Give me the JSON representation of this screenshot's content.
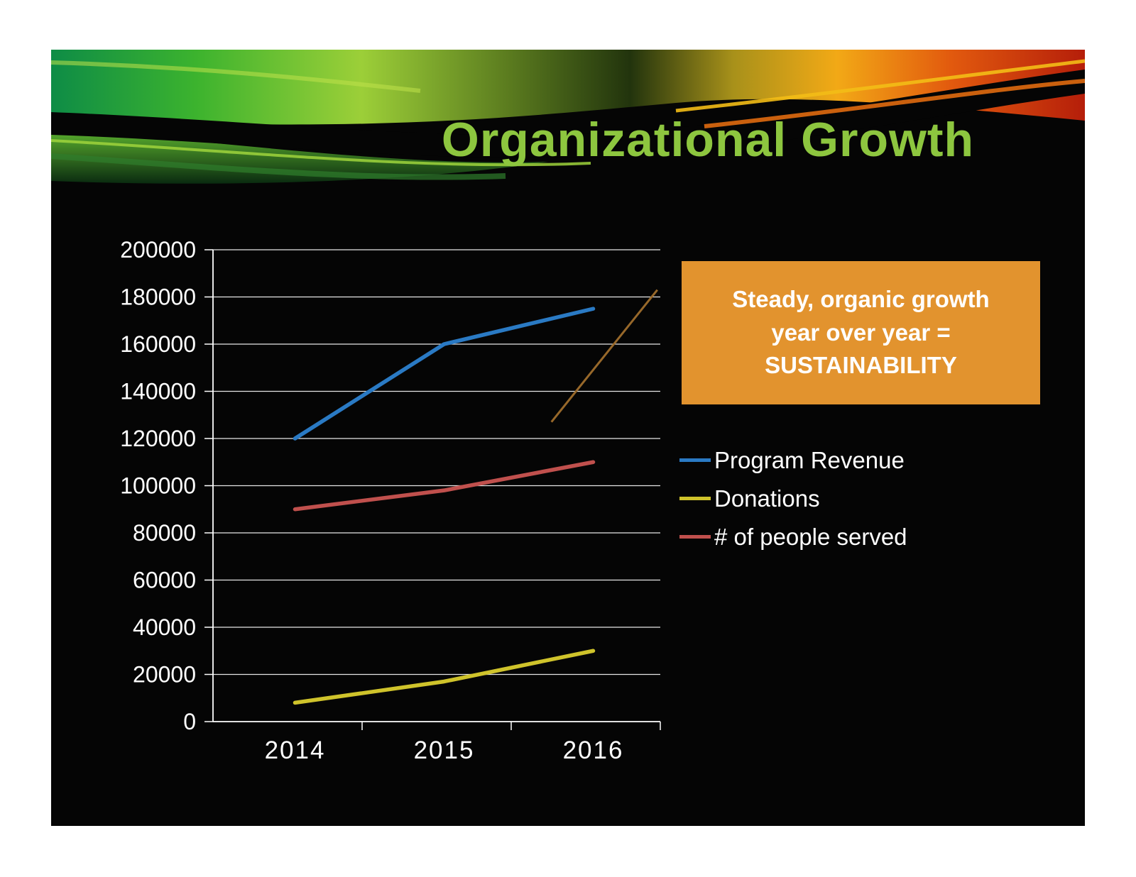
{
  "slide": {
    "title": "Organizational Growth",
    "title_color": "#8dc63f",
    "background_color": "#050505",
    "callout": {
      "lines": [
        "Steady, organic growth",
        "year over year =",
        "SUSTAINABILITY"
      ],
      "bg_color": "#e2932e",
      "text_color": "#ffffff"
    }
  },
  "chart_data": {
    "type": "line",
    "title": "",
    "categories": [
      "2014",
      "2015",
      "2016"
    ],
    "series": [
      {
        "name": "Program Revenue",
        "color": "#2a7ac4",
        "values": [
          120000,
          160000,
          175000
        ]
      },
      {
        "name": "Donations",
        "color": "#cfc32b",
        "values": [
          8000,
          17000,
          30000
        ]
      },
      {
        "name": "# of people served",
        "color": "#c0504d",
        "values": [
          90000,
          98000,
          110000
        ]
      }
    ],
    "trendline": {
      "color": "#97682a",
      "x_start": 1.72,
      "x_end": 2.43,
      "y_start": 127000,
      "y_end": 183000
    },
    "xlabel": "",
    "ylabel": "",
    "ylim": [
      0,
      200000
    ],
    "ytick_step": 20000,
    "grid": true,
    "legend_position": "right",
    "axis_color": "#ffffff",
    "label_color": "#ffffff"
  }
}
